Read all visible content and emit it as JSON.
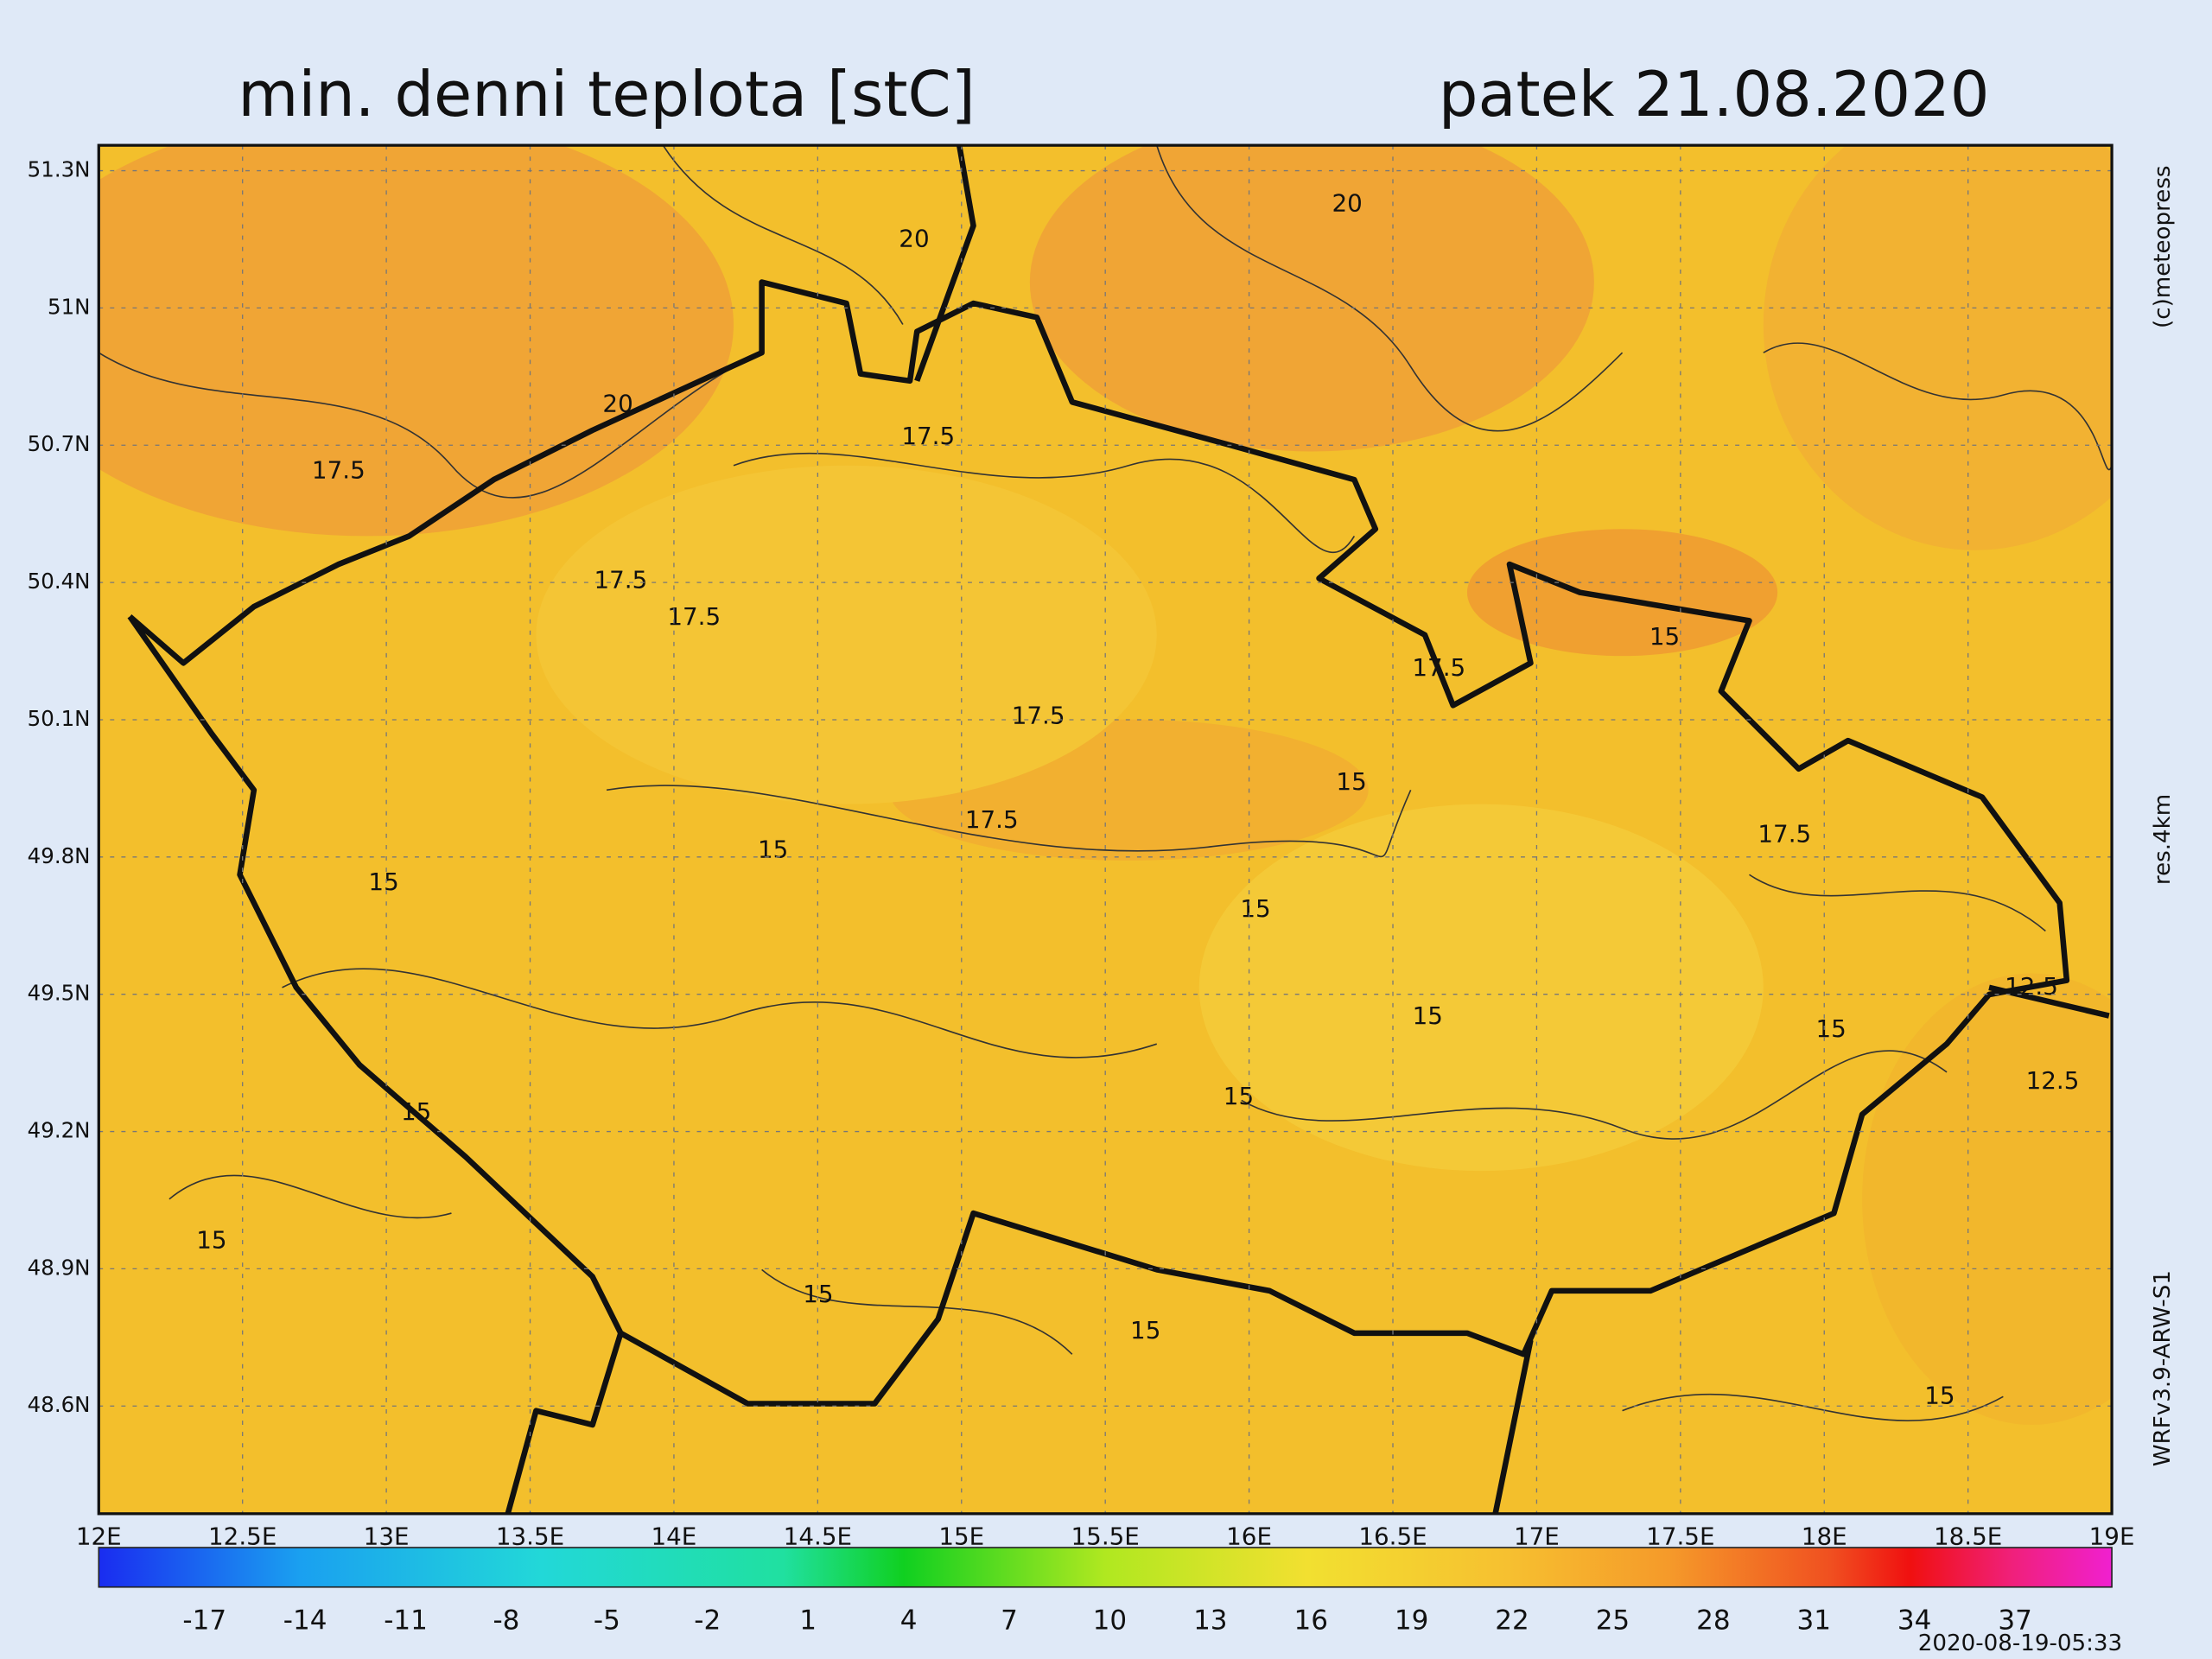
{
  "header": {
    "title": "min. denni teplota [stC]",
    "date": "patek 21.08.2020"
  },
  "map": {
    "lat_labels": [
      "51.3N",
      "51N",
      "50.7N",
      "50.4N",
      "50.1N",
      "49.8N",
      "49.5N",
      "49.2N",
      "48.9N",
      "48.6N"
    ],
    "lon_labels": [
      "12E",
      "12.5E",
      "13E",
      "13.5E",
      "14E",
      "14.5E",
      "15E",
      "15.5E",
      "16E",
      "16.5E",
      "17E",
      "17.5E",
      "18E",
      "18.5E",
      "19E"
    ],
    "contour_labels": [
      "20",
      "20",
      "20",
      "17.5",
      "17.5",
      "17.5",
      "17.5",
      "17.5",
      "17.5",
      "17.5",
      "17.5",
      "15",
      "15",
      "15",
      "15",
      "15",
      "15",
      "15",
      "15",
      "15",
      "15",
      "15",
      "12.5",
      "12.5",
      "15",
      "15"
    ]
  },
  "colorbar": {
    "labels": [
      "-17",
      "-14",
      "-11",
      "-8",
      "-5",
      "-2",
      "1",
      "4",
      "7",
      "10",
      "13",
      "16",
      "19",
      "22",
      "25",
      "28",
      "31",
      "34",
      "37"
    ]
  },
  "side": {
    "copyright": "(c)meteopress",
    "resolution": "res.4km",
    "model": "WRFv3.9-ARW-S1"
  },
  "footer": {
    "timestamp": "2020-08-19-05:33"
  }
}
